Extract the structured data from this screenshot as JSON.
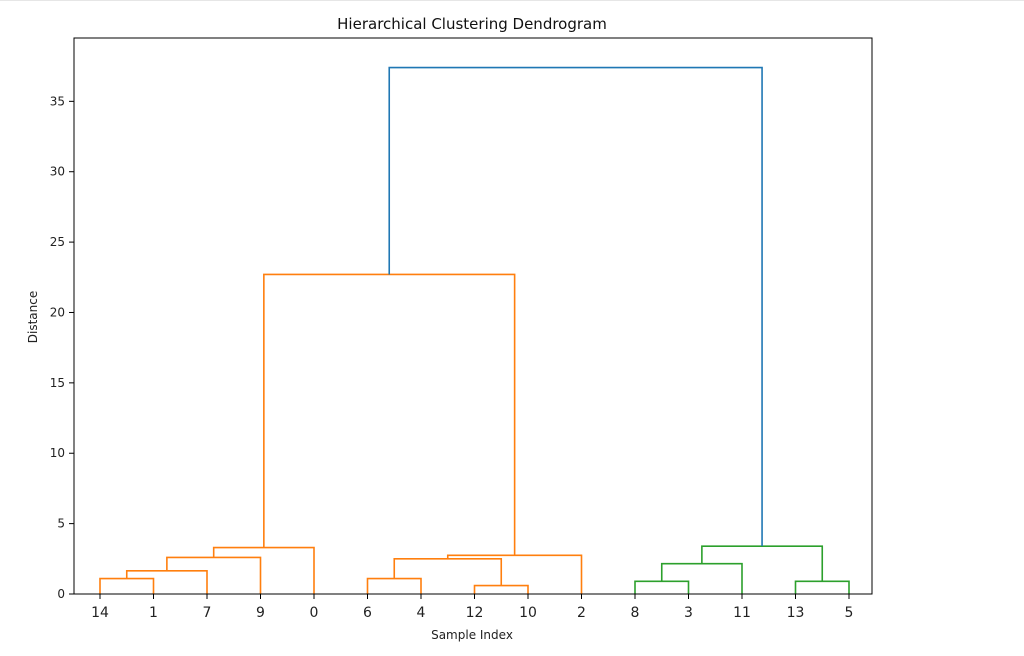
{
  "chart_data": {
    "type": "dendrogram",
    "title": "Hierarchical Clustering Dendrogram",
    "xlabel": "Sample Index",
    "ylabel": "Distance",
    "ylim": [
      0,
      39.5
    ],
    "yticks": [
      0,
      5,
      10,
      15,
      20,
      25,
      30,
      35
    ],
    "leaf_order": [
      "14",
      "1",
      "7",
      "9",
      "0",
      "6",
      "4",
      "12",
      "10",
      "2",
      "8",
      "3",
      "11",
      "13",
      "5"
    ],
    "colors": {
      "cluster_1": "#ff7f0e",
      "cluster_2": "#2ca02c",
      "root": "#1f77b4"
    },
    "merges": [
      {
        "left": "14",
        "right": "1",
        "height": 1.1,
        "color": "#ff7f0e"
      },
      {
        "left": "(14,1)",
        "right": "7",
        "height": 1.65,
        "color": "#ff7f0e"
      },
      {
        "left": "(14,1,7)",
        "right": "9",
        "height": 2.6,
        "color": "#ff7f0e"
      },
      {
        "left": "(14,1,7,9)",
        "right": "0",
        "height": 3.3,
        "color": "#ff7f0e"
      },
      {
        "left": "6",
        "right": "4",
        "height": 1.1,
        "color": "#ff7f0e"
      },
      {
        "left": "12",
        "right": "10",
        "height": 0.6,
        "color": "#ff7f0e"
      },
      {
        "left": "(6,4)",
        "right": "(12,10)",
        "height": 2.5,
        "color": "#ff7f0e"
      },
      {
        "left": "(6,4,12,10)",
        "right": "2",
        "height": 2.75,
        "color": "#ff7f0e"
      },
      {
        "left": "(14,1,7,9,0)",
        "right": "(6,4,12,10,2)",
        "height": 22.7,
        "color": "#ff7f0e"
      },
      {
        "left": "8",
        "right": "3",
        "height": 0.9,
        "color": "#2ca02c"
      },
      {
        "left": "(8,3)",
        "right": "11",
        "height": 2.15,
        "color": "#2ca02c"
      },
      {
        "left": "13",
        "right": "5",
        "height": 0.9,
        "color": "#2ca02c"
      },
      {
        "left": "(8,3,11)",
        "right": "(13,5)",
        "height": 3.4,
        "color": "#2ca02c"
      },
      {
        "left": "orange-cluster",
        "right": "green-cluster",
        "height": 37.4,
        "color": "#1f77b4"
      }
    ]
  }
}
